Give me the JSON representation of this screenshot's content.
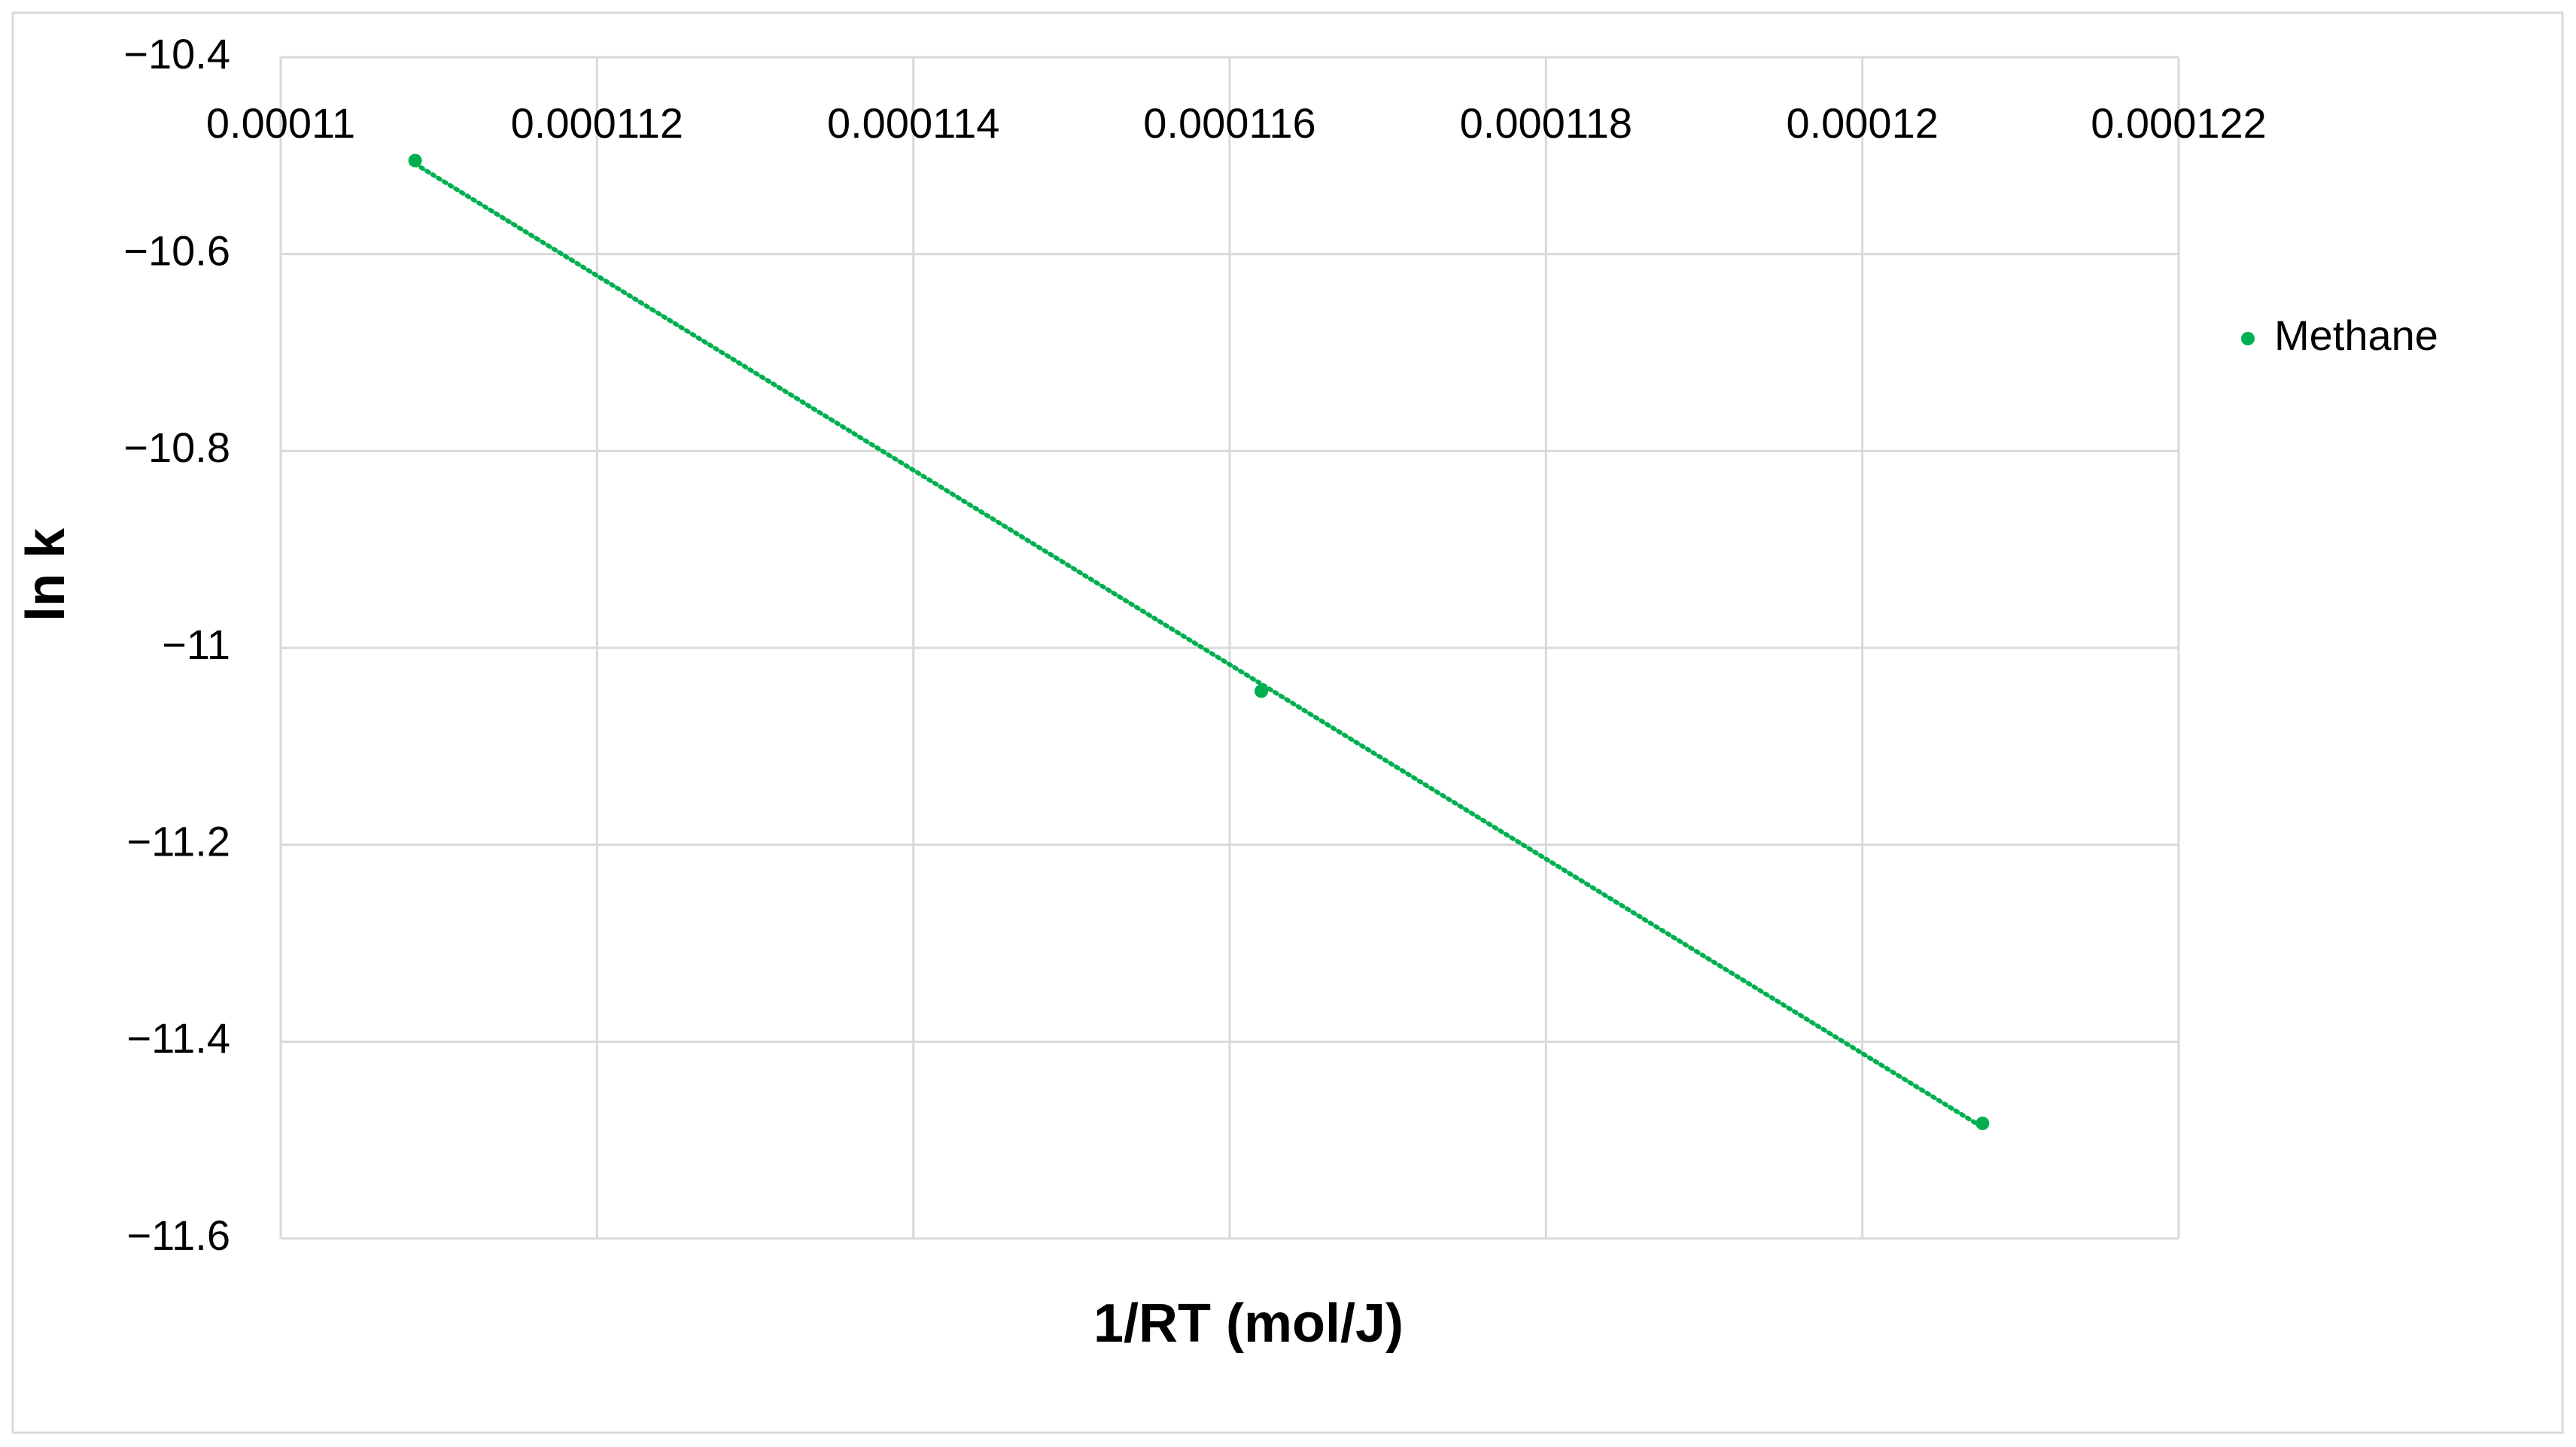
{
  "chart_data": {
    "type": "scatter",
    "x_label": "1/RT (mol/J)",
    "y_label": "ln k",
    "series": [
      {
        "name": "Methane",
        "color": "#00b050",
        "x": [
          0.00011085,
          0.0001162,
          0.00012076
        ],
        "values": [
          -10.505,
          -11.044,
          -11.483
        ]
      }
    ],
    "trendline": "linear",
    "xlim": [
      0.00011,
      0.000122
    ],
    "xticks": [
      0.00011,
      0.000112,
      0.000114,
      0.000116,
      0.000118,
      0.00012,
      0.000122
    ],
    "ylim": [
      -11.6,
      -10.4
    ],
    "yticks": [
      {
        "value": -10.4,
        "label": "−10.4"
      },
      {
        "value": -10.6,
        "label": "−10.6"
      },
      {
        "value": -10.8,
        "label": "−10.8"
      },
      {
        "value": -11,
        "label": "−11"
      },
      {
        "value": -11.2,
        "label": "−11.2"
      },
      {
        "value": -11.4,
        "label": "−11.4"
      },
      {
        "value": -11.6,
        "label": "−11.6"
      }
    ],
    "grid": true,
    "legend": "right"
  }
}
